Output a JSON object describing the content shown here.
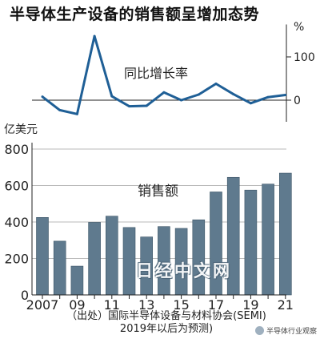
{
  "title": "半导体生产设备的销售额呈增加态势",
  "chart_data": [
    {
      "type": "line",
      "label": "同比增长率",
      "unit": "%",
      "x": [
        2007,
        2008,
        2009,
        2010,
        2011,
        2012,
        2013,
        2014,
        2015,
        2016,
        2017,
        2018,
        2019,
        2020,
        2021
      ],
      "values": [
        8,
        -23,
        -32,
        148,
        9,
        -14,
        -13,
        18,
        0,
        13,
        38,
        14,
        -7,
        7,
        12
      ],
      "y_ticks": [
        0,
        100
      ],
      "ylim": [
        -50,
        175
      ]
    },
    {
      "type": "bar",
      "label": "销售额",
      "unit": "亿美元",
      "categories": [
        2007,
        2008,
        2009,
        2010,
        2011,
        2012,
        2013,
        2014,
        2015,
        2016,
        2017,
        2018,
        2019,
        2020,
        2021
      ],
      "values": [
        425,
        295,
        158,
        398,
        432,
        370,
        318,
        375,
        365,
        412,
        565,
        645,
        575,
        608,
        668
      ],
      "y_ticks": [
        0,
        200,
        400,
        600,
        800
      ],
      "ylim": [
        0,
        800
      ],
      "x_tick_labels": [
        "2007",
        "09",
        "11",
        "13",
        "15",
        "17",
        "19",
        "21"
      ],
      "bar_color": "#5f7a8e"
    }
  ],
  "source_note": "（出处）国际半导体设备与材料协会(SEMI)\n2019年以后为预测)",
  "watermark": "日经中文网",
  "corner_mark": "半导体行业观察"
}
